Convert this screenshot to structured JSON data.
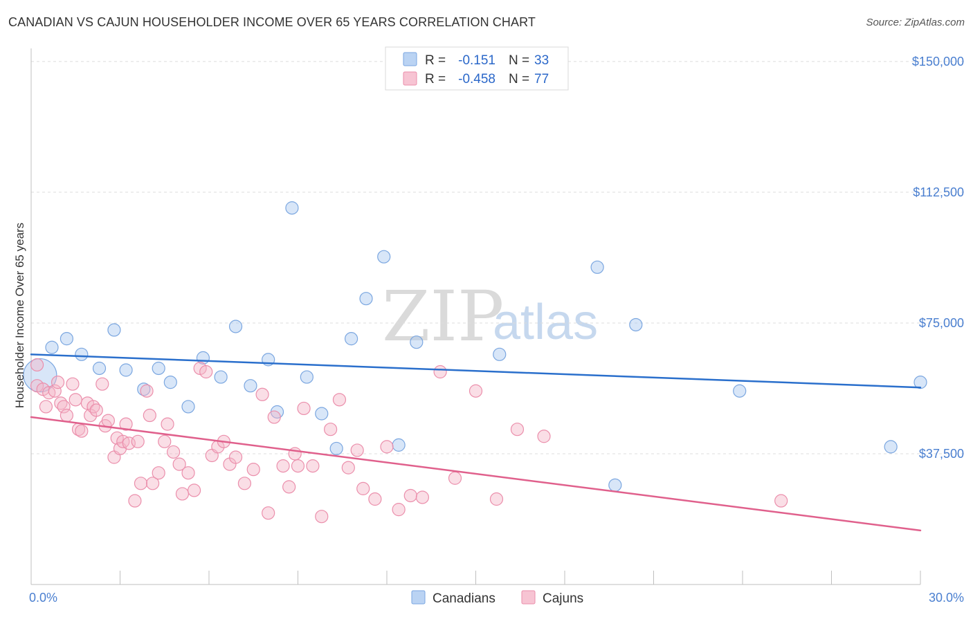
{
  "header": {
    "title": "CANADIAN VS CAJUN HOUSEHOLDER INCOME OVER 65 YEARS CORRELATION CHART",
    "source": "Source: ZipAtlas.com"
  },
  "watermark": {
    "zip": "ZIP",
    "atlas": "atlas"
  },
  "legend": {
    "rows": [
      {
        "r_label": "R =",
        "r_value": "-0.151",
        "n_label": "N =",
        "n_value": "33",
        "color": "#a9c8f0"
      },
      {
        "r_label": "R =",
        "r_value": "-0.458",
        "n_label": "N =",
        "n_value": "77",
        "color": "#f5b5c8"
      }
    ]
  },
  "bottom_legend": {
    "items": [
      {
        "label": "Canadians",
        "color": "#a9c8f0"
      },
      {
        "label": "Cajuns",
        "color": "#f5b5c8"
      }
    ]
  },
  "chart_data": {
    "type": "scatter",
    "title": "CANADIAN VS CAJUN HOUSEHOLDER INCOME OVER 65 YEARS CORRELATION CHART",
    "xlabel": "",
    "ylabel": "Householder Income Over 65 years",
    "xlim": [
      0,
      30
    ],
    "ylim": [
      0,
      153750
    ],
    "x_tick_labels": [
      "0.0%",
      "30.0%"
    ],
    "y_ticks": [
      37500,
      75000,
      112500,
      150000
    ],
    "y_tick_labels": [
      "$37,500",
      "$75,000",
      "$112,500",
      "$150,000"
    ],
    "grid": true,
    "legend_position": "top-center",
    "series": [
      {
        "name": "Canadians",
        "color": "#a9c8f0",
        "stroke": "#7aa6e0",
        "line_color": "#2a6fcc",
        "trend": [
          [
            0,
            66000
          ],
          [
            30,
            56500
          ]
        ],
        "points": [
          [
            0.3,
            60000
          ],
          [
            0.7,
            68000
          ],
          [
            1.2,
            70500
          ],
          [
            1.7,
            66000
          ],
          [
            2.3,
            62000
          ],
          [
            2.8,
            73000
          ],
          [
            3.2,
            61500
          ],
          [
            3.8,
            56000
          ],
          [
            4.3,
            62000
          ],
          [
            4.7,
            58000
          ],
          [
            5.3,
            51000
          ],
          [
            5.8,
            65000
          ],
          [
            6.4,
            59500
          ],
          [
            6.9,
            74000
          ],
          [
            7.4,
            57000
          ],
          [
            8.0,
            64500
          ],
          [
            8.3,
            49500
          ],
          [
            8.8,
            108000
          ],
          [
            9.3,
            59500
          ],
          [
            9.8,
            49000
          ],
          [
            10.3,
            39000
          ],
          [
            10.8,
            70500
          ],
          [
            11.3,
            82000
          ],
          [
            11.9,
            94000
          ],
          [
            12.4,
            40000
          ],
          [
            13.0,
            69500
          ],
          [
            15.8,
            66000
          ],
          [
            19.1,
            91000
          ],
          [
            19.7,
            28500
          ],
          [
            20.4,
            74500
          ],
          [
            23.9,
            55500
          ],
          [
            29.0,
            39500
          ],
          [
            30.0,
            58000
          ]
        ]
      },
      {
        "name": "Cajuns",
        "color": "#f5b5c8",
        "stroke": "#eb8eab",
        "line_color": "#e0608c",
        "trend": [
          [
            0,
            48000
          ],
          [
            30,
            15500
          ]
        ],
        "points": [
          [
            0.2,
            57000
          ],
          [
            0.2,
            63000
          ],
          [
            0.4,
            56000
          ],
          [
            0.5,
            51000
          ],
          [
            0.6,
            55000
          ],
          [
            0.8,
            55500
          ],
          [
            0.9,
            58000
          ],
          [
            1.0,
            52000
          ],
          [
            1.1,
            51000
          ],
          [
            1.2,
            48500
          ],
          [
            1.4,
            57500
          ],
          [
            1.5,
            53000
          ],
          [
            1.6,
            44500
          ],
          [
            1.7,
            44000
          ],
          [
            1.9,
            52000
          ],
          [
            2.0,
            48500
          ],
          [
            2.1,
            51000
          ],
          [
            2.2,
            50000
          ],
          [
            2.4,
            57500
          ],
          [
            2.5,
            45500
          ],
          [
            2.6,
            47000
          ],
          [
            2.8,
            36500
          ],
          [
            2.9,
            42000
          ],
          [
            3.0,
            39000
          ],
          [
            3.1,
            41000
          ],
          [
            3.2,
            46000
          ],
          [
            3.3,
            40500
          ],
          [
            3.5,
            24000
          ],
          [
            3.6,
            41000
          ],
          [
            3.7,
            29000
          ],
          [
            3.9,
            55500
          ],
          [
            4.0,
            48500
          ],
          [
            4.1,
            29000
          ],
          [
            4.3,
            32000
          ],
          [
            4.5,
            41000
          ],
          [
            4.6,
            46000
          ],
          [
            4.8,
            38000
          ],
          [
            5.0,
            34500
          ],
          [
            5.1,
            26000
          ],
          [
            5.3,
            32000
          ],
          [
            5.5,
            27000
          ],
          [
            5.7,
            62000
          ],
          [
            5.9,
            61000
          ],
          [
            6.1,
            37000
          ],
          [
            6.3,
            39500
          ],
          [
            6.5,
            41000
          ],
          [
            6.7,
            34500
          ],
          [
            6.9,
            36500
          ],
          [
            7.2,
            29000
          ],
          [
            7.5,
            33000
          ],
          [
            7.8,
            54500
          ],
          [
            8.0,
            20500
          ],
          [
            8.2,
            48000
          ],
          [
            8.5,
            34000
          ],
          [
            8.7,
            28000
          ],
          [
            8.9,
            37500
          ],
          [
            9.0,
            34000
          ],
          [
            9.2,
            50500
          ],
          [
            9.5,
            34000
          ],
          [
            9.8,
            19500
          ],
          [
            10.1,
            44500
          ],
          [
            10.4,
            53000
          ],
          [
            10.7,
            33500
          ],
          [
            11.0,
            38500
          ],
          [
            11.2,
            27500
          ],
          [
            11.6,
            24500
          ],
          [
            12.0,
            39500
          ],
          [
            12.4,
            21500
          ],
          [
            12.8,
            25500
          ],
          [
            13.2,
            25000
          ],
          [
            13.8,
            61000
          ],
          [
            14.3,
            30500
          ],
          [
            15.0,
            55500
          ],
          [
            15.7,
            24500
          ],
          [
            16.4,
            44500
          ],
          [
            17.3,
            42500
          ],
          [
            25.3,
            24000
          ]
        ]
      }
    ]
  }
}
